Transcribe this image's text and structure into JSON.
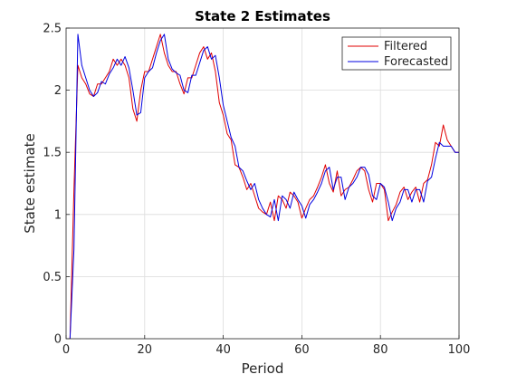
{
  "chart_data": {
    "type": "line",
    "title": "State 2 Estimates",
    "xlabel": "Period",
    "ylabel": "State estimate",
    "xlim": [
      0,
      100
    ],
    "ylim": [
      0,
      2.5
    ],
    "xticks": [
      0,
      20,
      40,
      60,
      80,
      100
    ],
    "yticks": [
      0,
      0.5,
      1,
      1.5,
      2,
      2.5
    ],
    "xtick_labels": [
      "0",
      "20",
      "40",
      "60",
      "80",
      "100"
    ],
    "ytick_labels": [
      "0",
      "0.5",
      "1",
      "1.5",
      "2",
      "2.5"
    ],
    "grid": true,
    "legend_position": "top-right",
    "x": [
      1,
      2,
      3,
      4,
      5,
      6,
      7,
      8,
      9,
      10,
      11,
      12,
      13,
      14,
      15,
      16,
      17,
      18,
      19,
      20,
      21,
      22,
      23,
      24,
      25,
      26,
      27,
      28,
      29,
      30,
      31,
      32,
      33,
      34,
      35,
      36,
      37,
      38,
      39,
      40,
      41,
      42,
      43,
      44,
      45,
      46,
      47,
      48,
      49,
      50,
      51,
      52,
      53,
      54,
      55,
      56,
      57,
      58,
      59,
      60,
      61,
      62,
      63,
      64,
      65,
      66,
      67,
      68,
      69,
      70,
      71,
      72,
      73,
      74,
      75,
      76,
      77,
      78,
      79,
      80,
      81,
      82,
      83,
      84,
      85,
      86,
      87,
      88,
      89,
      90,
      91,
      92,
      93,
      94,
      95,
      96,
      97,
      98,
      99,
      100
    ],
    "series": [
      {
        "name": "Filtered",
        "color": "#e00000",
        "values": [
          0.0,
          1.2,
          2.2,
          2.1,
          2.05,
          1.97,
          1.95,
          2.05,
          2.05,
          2.1,
          2.15,
          2.25,
          2.2,
          2.25,
          2.2,
          2.1,
          1.85,
          1.75,
          2.0,
          2.15,
          2.15,
          2.25,
          2.35,
          2.45,
          2.3,
          2.2,
          2.15,
          2.15,
          2.05,
          1.97,
          2.1,
          2.1,
          2.2,
          2.3,
          2.35,
          2.25,
          2.3,
          2.15,
          1.9,
          1.8,
          1.65,
          1.6,
          1.4,
          1.38,
          1.3,
          1.2,
          1.25,
          1.15,
          1.05,
          1.02,
          1.0,
          1.1,
          0.95,
          1.15,
          1.12,
          1.05,
          1.18,
          1.15,
          1.1,
          0.97,
          1.05,
          1.12,
          1.15,
          1.22,
          1.3,
          1.4,
          1.25,
          1.18,
          1.35,
          1.15,
          1.2,
          1.22,
          1.28,
          1.35,
          1.38,
          1.35,
          1.2,
          1.1,
          1.25,
          1.25,
          1.2,
          0.95,
          1.02,
          1.08,
          1.18,
          1.22,
          1.12,
          1.18,
          1.22,
          1.1,
          1.25,
          1.28,
          1.4,
          1.58,
          1.55,
          1.72,
          1.6,
          1.55,
          1.5,
          1.5
        ]
      },
      {
        "name": "Forecasted",
        "color": "#0000e0",
        "values": [
          0.0,
          0.72,
          2.45,
          2.2,
          2.1,
          2.0,
          1.95,
          1.98,
          2.07,
          2.05,
          2.13,
          2.18,
          2.25,
          2.2,
          2.27,
          2.18,
          2.0,
          1.8,
          1.82,
          2.1,
          2.15,
          2.18,
          2.3,
          2.4,
          2.45,
          2.25,
          2.17,
          2.14,
          2.12,
          2.0,
          1.98,
          2.12,
          2.12,
          2.22,
          2.32,
          2.35,
          2.25,
          2.28,
          2.1,
          1.88,
          1.75,
          1.62,
          1.55,
          1.38,
          1.35,
          1.27,
          1.2,
          1.25,
          1.12,
          1.05,
          1.0,
          0.98,
          1.12,
          0.95,
          1.15,
          1.12,
          1.05,
          1.18,
          1.12,
          1.07,
          0.97,
          1.08,
          1.12,
          1.18,
          1.25,
          1.35,
          1.38,
          1.2,
          1.3,
          1.3,
          1.12,
          1.22,
          1.25,
          1.3,
          1.38,
          1.38,
          1.32,
          1.15,
          1.12,
          1.25,
          1.22,
          1.1,
          0.95,
          1.05,
          1.1,
          1.2,
          1.2,
          1.1,
          1.2,
          1.2,
          1.1,
          1.27,
          1.3,
          1.45,
          1.58,
          1.55,
          1.55,
          1.55,
          1.5,
          1.5
        ]
      }
    ]
  }
}
